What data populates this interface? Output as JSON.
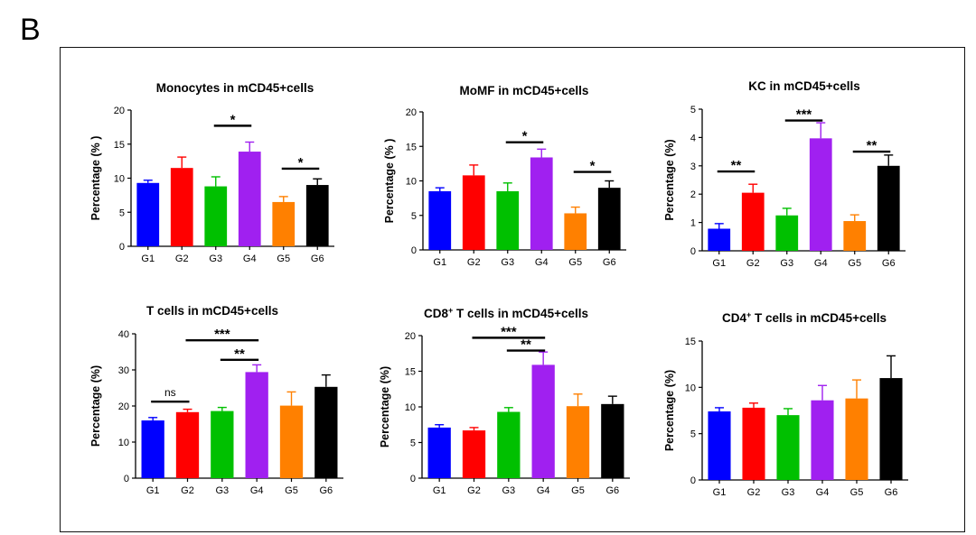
{
  "panel_label": "B",
  "colors": {
    "G1": "#0000ff",
    "G2": "#ff0000",
    "G3": "#00c000",
    "G4": "#a020f0",
    "G5": "#ff8000",
    "G6": "#000000"
  },
  "chart_data": [
    {
      "type": "bar",
      "title": "Monocytes in mCD45+cells",
      "title_sup": "",
      "ylabel": "Percentage (% )",
      "categories": [
        "G1",
        "G2",
        "G3",
        "G4",
        "G5",
        "G6"
      ],
      "values": [
        9.3,
        11.5,
        8.8,
        13.9,
        6.5,
        9.0
      ],
      "errors": [
        0.4,
        1.6,
        1.4,
        1.4,
        0.8,
        0.9
      ],
      "ylim": [
        0,
        20
      ],
      "yticks": [
        "0",
        "5",
        "10",
        "15",
        "20"
      ],
      "significance": [
        {
          "from": "G3",
          "to": "G4",
          "label": "*",
          "y": 17.7
        },
        {
          "from": "G5",
          "to": "G6",
          "label": "*",
          "y": 11.4
        }
      ]
    },
    {
      "type": "bar",
      "title": "MoMF in mCD45+cells",
      "title_sup": "",
      "ylabel": "Percentage (% )",
      "categories": [
        "G1",
        "G2",
        "G3",
        "G4",
        "G5",
        "G6"
      ],
      "values": [
        8.5,
        10.8,
        8.5,
        13.4,
        5.3,
        9.0
      ],
      "errors": [
        0.5,
        1.5,
        1.2,
        1.2,
        0.9,
        1.0
      ],
      "ylim": [
        0,
        20
      ],
      "yticks": [
        "0",
        "5",
        "10",
        "15",
        "20"
      ],
      "significance": [
        {
          "from": "G3",
          "to": "G4",
          "label": "*",
          "y": 15.6
        },
        {
          "from": "G5",
          "to": "G6",
          "label": "*",
          "y": 11.3
        }
      ]
    },
    {
      "type": "bar",
      "title": "KC in mCD45+cells",
      "title_sup": "",
      "ylabel": "Percentage (%)",
      "categories": [
        "G1",
        "G2",
        "G3",
        "G4",
        "G5",
        "G6"
      ],
      "values": [
        0.78,
        2.05,
        1.25,
        3.97,
        1.05,
        3.0
      ],
      "errors": [
        0.18,
        0.3,
        0.25,
        0.55,
        0.22,
        0.38
      ],
      "ylim": [
        0,
        5
      ],
      "yticks": [
        "0",
        "1",
        "2",
        "3",
        "4",
        "5"
      ],
      "significance": [
        {
          "from": "G1",
          "to": "G2",
          "label": "**",
          "y": 2.8
        },
        {
          "from": "G3",
          "to": "G4",
          "label": "***",
          "y": 4.6
        },
        {
          "from": "G5",
          "to": "G6",
          "label": "**",
          "y": 3.5
        }
      ]
    },
    {
      "type": "bar",
      "title": "T cells in mCD45+cells",
      "title_sup": "",
      "ylabel": "Percentage (%)",
      "categories": [
        "G1",
        "G2",
        "G3",
        "G4",
        "G5",
        "G6"
      ],
      "values": [
        16.0,
        18.3,
        18.6,
        29.4,
        20.1,
        25.3
      ],
      "errors": [
        0.8,
        0.8,
        1.0,
        2.0,
        3.8,
        3.3
      ],
      "ylim": [
        0,
        40
      ],
      "yticks": [
        "0",
        "10",
        "20",
        "30",
        "40"
      ],
      "significance": [
        {
          "from": "G1",
          "to": "G2",
          "label": "ns",
          "y": 21.2
        },
        {
          "from": "G2",
          "to": "G4",
          "label": "***",
          "y": 38.2
        },
        {
          "from": "G3",
          "to": "G4",
          "label": "**",
          "y": 32.8
        }
      ]
    },
    {
      "type": "bar",
      "title": "T cells in mCD45+cells",
      "title_prefix": "CD8",
      "title_sup": "+",
      "ylabel": "Percentage (%)",
      "categories": [
        "G1",
        "G2",
        "G3",
        "G4",
        "G5",
        "G6"
      ],
      "values": [
        7.1,
        6.7,
        9.3,
        15.9,
        10.1,
        10.4
      ],
      "errors": [
        0.4,
        0.4,
        0.6,
        1.8,
        1.7,
        1.1
      ],
      "ylim": [
        0,
        20
      ],
      "yticks": [
        "0",
        "5",
        "10",
        "15",
        "20"
      ],
      "significance": [
        {
          "from": "G2",
          "to": "G4",
          "label": "***",
          "y": 19.7
        },
        {
          "from": "G3",
          "to": "G4",
          "label": "**",
          "y": 17.9
        }
      ]
    },
    {
      "type": "bar",
      "title": "T cells in mCD45+cells",
      "title_prefix": "CD4",
      "title_sup": "+",
      "ylabel": "Percentage (%)",
      "categories": [
        "G1",
        "G2",
        "G3",
        "G4",
        "G5",
        "G6"
      ],
      "values": [
        7.4,
        7.8,
        7.0,
        8.6,
        8.8,
        11.0
      ],
      "errors": [
        0.4,
        0.5,
        0.7,
        1.6,
        2.0,
        2.4
      ],
      "ylim": [
        0,
        15
      ],
      "yticks": [
        "0",
        "5",
        "10",
        "15"
      ],
      "significance": []
    }
  ]
}
